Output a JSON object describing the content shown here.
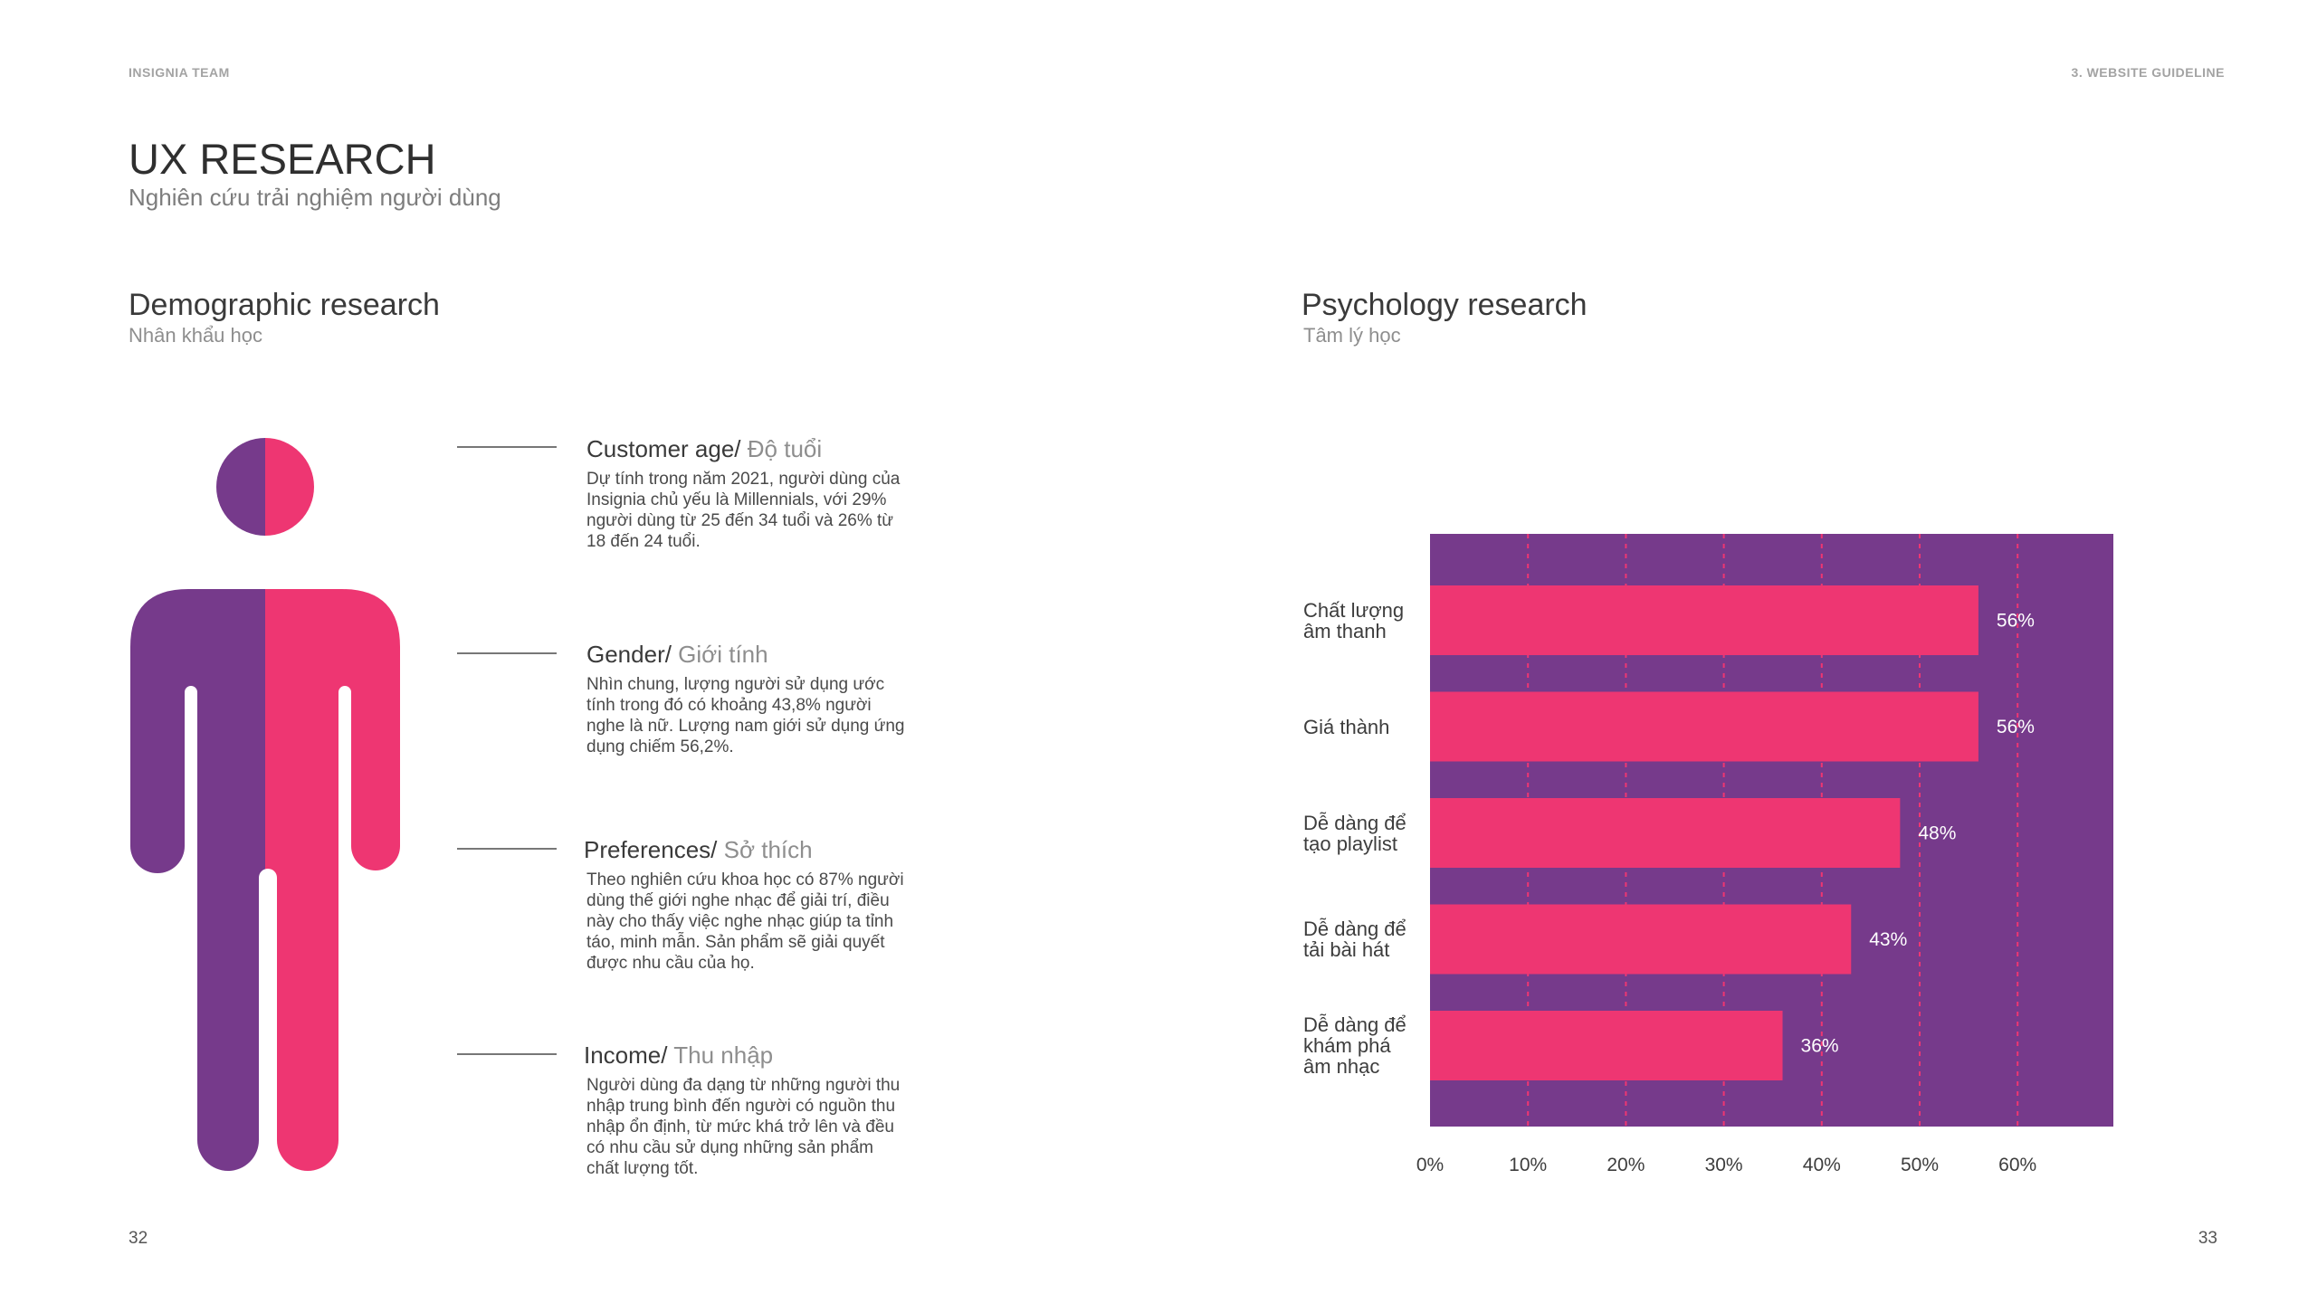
{
  "header": {
    "team": "INSIGNIA TEAM",
    "section": "3. WEBSITE GUIDELINE"
  },
  "page": {
    "title": "UX RESEARCH",
    "subtitle": "Nghiên cứu trải nghiệm người dùng",
    "left_page_number": "32",
    "right_page_number": "33"
  },
  "demographic": {
    "title": "Demographic research",
    "subtitle": "Nhân khẩu học",
    "colors": {
      "male": "#763a8b",
      "female": "#ee3672"
    },
    "items": [
      {
        "head_en": "Customer age/",
        "head_vn": " Độ tuổi",
        "body": "Dự tính trong năm 2021, người dùng của Insignia chủ yếu là Millennials, với 29% người dùng từ 25 đến 34 tuổi và 26% từ 18 đến 24 tuổi."
      },
      {
        "head_en": "Gender/",
        "head_vn": " Giới tính",
        "body": "Nhìn chung, lượng người sử dụng ước tính trong đó có khoảng 43,8% người nghe là nữ. Lượng nam giới sử dụng ứng dụng chiếm 56,2%."
      },
      {
        "head_en": "Preferences/",
        "head_vn": " Sở thích",
        "body": "Theo nghiên cứu khoa học có 87% người dùng thế giới nghe nhạc để giải trí, điều này cho thấy việc nghe nhạc giúp ta tỉnh táo, minh mẫn. Sản phẩm sẽ giải quyết được nhu cầu của họ."
      },
      {
        "head_en": "Income/",
        "head_vn": " Thu nhập",
        "body": "Người dùng đa dạng từ những người thu nhập trung bình đến người có nguồn thu nhập ổn định, từ mức khá trở lên và đều có nhu cầu sử dụng những sản phẩm chất lượng tốt."
      }
    ]
  },
  "psychology": {
    "title": "Psychology research",
    "subtitle": "Tâm lý học"
  },
  "chart_data": {
    "type": "bar",
    "orientation": "horizontal",
    "categories": [
      "Chất lượng\nâm thanh",
      "Giá thành",
      "Dễ dàng để\ntạo playlist",
      "Dễ dàng để\ntải bài hát",
      "Dễ dàng để\nkhám phá\nâm nhạc"
    ],
    "values": [
      56,
      56,
      48,
      43,
      36
    ],
    "value_labels": [
      "56%",
      "56%",
      "48%",
      "43%",
      "36%"
    ],
    "x_ticks": [
      "0%",
      "10%",
      "20%",
      "30%",
      "40%",
      "50%",
      "60%"
    ],
    "xlim": [
      0,
      70
    ],
    "grid": "vertical dashed",
    "colors": {
      "background": "#763a8b",
      "bar": "#ee3672",
      "grid": "#ee3672",
      "value_label": "#ffffff"
    }
  }
}
